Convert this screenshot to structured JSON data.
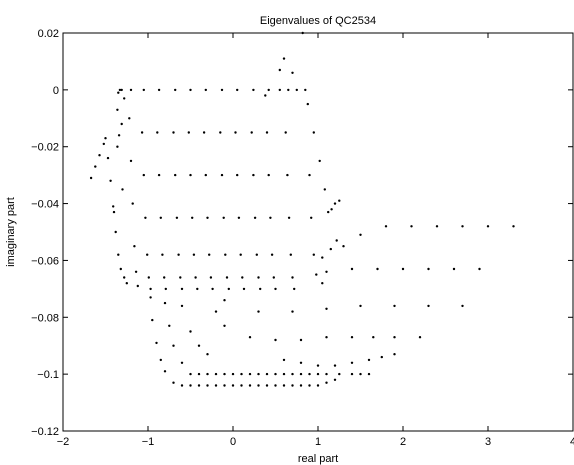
{
  "chart_data": {
    "type": "scatter",
    "title": "Eigenvalues of QC2534",
    "xlabel": "real part",
    "ylabel": "imaginary part",
    "xlim": [
      -2,
      4
    ],
    "ylim": [
      -0.12,
      0.02
    ],
    "xticks": [
      -2,
      -1,
      0,
      1,
      2,
      3,
      4
    ],
    "xtick_labels": [
      "−2",
      "−1",
      "0",
      "1",
      "2",
      "3",
      "4"
    ],
    "yticks": [
      0.02,
      0,
      -0.02,
      -0.04,
      -0.06,
      -0.08,
      -0.1,
      -0.12
    ],
    "ytick_labels": [
      "0.02",
      "0",
      "−0.02",
      "−0.04",
      "−0.06",
      "−0.08",
      "−0.1",
      "−0.12"
    ],
    "grid": false,
    "marker": "dot",
    "color": "#000000",
    "series": [
      {
        "points": [
          [
            -1.67,
            -0.031
          ],
          [
            -1.62,
            -0.027
          ],
          [
            -1.57,
            -0.023
          ],
          [
            -1.52,
            -0.019
          ],
          [
            -1.5,
            -0.017
          ],
          [
            -1.47,
            -0.024
          ],
          [
            -1.44,
            -0.032
          ],
          [
            -1.41,
            -0.041
          ],
          [
            -1.38,
            -0.05
          ],
          [
            -1.35,
            -0.058
          ],
          [
            -1.32,
            -0.063
          ],
          [
            -1.28,
            -0.066
          ],
          [
            -1.25,
            -0.068
          ],
          [
            -1.36,
            -0.007
          ],
          [
            -1.35,
            -0.001
          ],
          [
            -1.33,
            0
          ],
          [
            -1.31,
            0
          ],
          [
            -1.28,
            -0.003
          ],
          [
            -1.31,
            -0.012
          ],
          [
            -1.34,
            -0.016
          ],
          [
            -1.36,
            -0.02
          ],
          [
            -1.2,
            0
          ],
          [
            -1.22,
            -0.01
          ],
          [
            -1.2,
            -0.025
          ],
          [
            -1.18,
            -0.04
          ],
          [
            -1.16,
            -0.055
          ],
          [
            -1.14,
            -0.064
          ],
          [
            -1.12,
            -0.069
          ],
          [
            -1.05,
            0
          ],
          [
            -1.07,
            -0.015
          ],
          [
            -1.05,
            -0.03
          ],
          [
            -1.03,
            -0.045
          ],
          [
            -1.01,
            -0.058
          ],
          [
            -0.99,
            -0.066
          ],
          [
            -0.97,
            -0.07
          ],
          [
            -0.87,
            0
          ],
          [
            -0.89,
            -0.015
          ],
          [
            -0.87,
            -0.03
          ],
          [
            -0.85,
            -0.045
          ],
          [
            -0.83,
            -0.058
          ],
          [
            -0.81,
            -0.066
          ],
          [
            -0.79,
            -0.07
          ],
          [
            -0.68,
            0
          ],
          [
            -0.7,
            -0.015
          ],
          [
            -0.68,
            -0.03
          ],
          [
            -0.66,
            -0.045
          ],
          [
            -0.64,
            -0.058
          ],
          [
            -0.62,
            -0.066
          ],
          [
            -0.6,
            -0.07
          ],
          [
            -0.5,
            0
          ],
          [
            -0.52,
            -0.015
          ],
          [
            -0.5,
            -0.03
          ],
          [
            -0.48,
            -0.045
          ],
          [
            -0.46,
            -0.058
          ],
          [
            -0.44,
            -0.066
          ],
          [
            -0.42,
            -0.07
          ],
          [
            -0.32,
            0
          ],
          [
            -0.34,
            -0.015
          ],
          [
            -0.32,
            -0.03
          ],
          [
            -0.3,
            -0.045
          ],
          [
            -0.28,
            -0.058
          ],
          [
            -0.26,
            -0.066
          ],
          [
            -0.24,
            -0.07
          ],
          [
            -0.13,
            0
          ],
          [
            -0.15,
            -0.015
          ],
          [
            -0.13,
            -0.03
          ],
          [
            -0.11,
            -0.045
          ],
          [
            -0.09,
            -0.058
          ],
          [
            -0.07,
            -0.066
          ],
          [
            -0.05,
            -0.07
          ],
          [
            0.05,
            0
          ],
          [
            0.03,
            -0.015
          ],
          [
            0.05,
            -0.03
          ],
          [
            0.07,
            -0.045
          ],
          [
            0.09,
            -0.058
          ],
          [
            0.11,
            -0.066
          ],
          [
            0.13,
            -0.07
          ],
          [
            0.24,
            0
          ],
          [
            0.22,
            -0.015
          ],
          [
            0.24,
            -0.03
          ],
          [
            0.26,
            -0.045
          ],
          [
            0.28,
            -0.058
          ],
          [
            0.3,
            -0.066
          ],
          [
            0.32,
            -0.07
          ],
          [
            0.42,
            0
          ],
          [
            0.4,
            -0.015
          ],
          [
            0.42,
            -0.03
          ],
          [
            0.44,
            -0.045
          ],
          [
            0.46,
            -0.058
          ],
          [
            0.48,
            -0.066
          ],
          [
            0.5,
            -0.07
          ],
          [
            0.55,
            0
          ],
          [
            0.65,
            0
          ],
          [
            0.75,
            0
          ],
          [
            0.85,
            0
          ],
          [
            0.62,
            -0.015
          ],
          [
            0.64,
            -0.03
          ],
          [
            0.66,
            -0.045
          ],
          [
            0.68,
            -0.058
          ],
          [
            0.7,
            -0.066
          ],
          [
            0.72,
            -0.07
          ],
          [
            0.88,
            -0.005
          ],
          [
            0.95,
            -0.015
          ],
          [
            1.02,
            -0.025
          ],
          [
            1.08,
            -0.035
          ],
          [
            1.12,
            -0.043
          ],
          [
            1.16,
            -0.042
          ],
          [
            1.2,
            -0.04
          ],
          [
            1.25,
            -0.039
          ],
          [
            0.9,
            -0.03
          ],
          [
            0.92,
            -0.045
          ],
          [
            0.95,
            -0.058
          ],
          [
            0.98,
            -0.065
          ],
          [
            1.05,
            -0.068
          ],
          [
            0.82,
            0.02
          ],
          [
            0.55,
            0.007
          ],
          [
            0.6,
            0.011
          ],
          [
            0.7,
            0.006
          ],
          [
            0.38,
            -0.002
          ],
          [
            -1.3,
            -0.035
          ],
          [
            -1.4,
            -0.043
          ],
          [
            -0.97,
            -0.073
          ],
          [
            -0.95,
            -0.081
          ],
          [
            -0.9,
            -0.089
          ],
          [
            -0.85,
            -0.095
          ],
          [
            -0.8,
            -0.099
          ],
          [
            -0.7,
            -0.103
          ],
          [
            -0.6,
            -0.104
          ],
          [
            -0.5,
            -0.104
          ],
          [
            -0.4,
            -0.104
          ],
          [
            -0.3,
            -0.104
          ],
          [
            -0.2,
            -0.104
          ],
          [
            -0.1,
            -0.104
          ],
          [
            0.0,
            -0.104
          ],
          [
            0.1,
            -0.104
          ],
          [
            0.2,
            -0.104
          ],
          [
            0.3,
            -0.104
          ],
          [
            0.4,
            -0.104
          ],
          [
            0.5,
            -0.104
          ],
          [
            0.6,
            -0.104
          ],
          [
            0.7,
            -0.104
          ],
          [
            0.8,
            -0.104
          ],
          [
            0.9,
            -0.104
          ],
          [
            1.0,
            -0.104
          ],
          [
            1.1,
            -0.103
          ],
          [
            1.2,
            -0.102
          ],
          [
            -0.8,
            -0.075
          ],
          [
            -0.75,
            -0.083
          ],
          [
            -0.7,
            -0.09
          ],
          [
            -0.6,
            -0.096
          ],
          [
            -0.5,
            -0.1
          ],
          [
            -0.4,
            -0.1
          ],
          [
            -0.3,
            -0.1
          ],
          [
            -0.2,
            -0.1
          ],
          [
            -0.1,
            -0.1
          ],
          [
            0.0,
            -0.1
          ],
          [
            0.1,
            -0.1
          ],
          [
            0.2,
            -0.1
          ],
          [
            0.3,
            -0.1
          ],
          [
            0.4,
            -0.1
          ],
          [
            0.5,
            -0.1
          ],
          [
            0.6,
            -0.1
          ],
          [
            0.7,
            -0.1
          ],
          [
            0.8,
            -0.1
          ],
          [
            0.9,
            -0.1
          ],
          [
            1.0,
            -0.1
          ],
          [
            1.1,
            -0.1
          ],
          [
            1.25,
            -0.1
          ],
          [
            1.4,
            -0.1
          ],
          [
            1.5,
            -0.1
          ],
          [
            1.6,
            -0.1
          ],
          [
            -0.6,
            -0.076
          ],
          [
            -0.5,
            -0.085
          ],
          [
            -0.4,
            -0.09
          ],
          [
            -0.3,
            -0.093
          ],
          [
            0.6,
            -0.095
          ],
          [
            0.8,
            -0.096
          ],
          [
            1.0,
            -0.097
          ],
          [
            1.2,
            -0.097
          ],
          [
            1.4,
            -0.096
          ],
          [
            1.6,
            -0.095
          ],
          [
            1.75,
            -0.094
          ],
          [
            1.9,
            -0.093
          ],
          [
            -0.2,
            -0.078
          ],
          [
            -0.1,
            -0.083
          ],
          [
            0.2,
            -0.087
          ],
          [
            0.5,
            -0.088
          ],
          [
            0.8,
            -0.088
          ],
          [
            1.1,
            -0.087
          ],
          [
            1.4,
            -0.087
          ],
          [
            1.65,
            -0.087
          ],
          [
            1.9,
            -0.087
          ],
          [
            2.2,
            -0.087
          ],
          [
            -0.1,
            -0.074
          ],
          [
            0.3,
            -0.078
          ],
          [
            0.7,
            -0.078
          ],
          [
            1.1,
            -0.077
          ],
          [
            1.5,
            -0.076
          ],
          [
            1.9,
            -0.076
          ],
          [
            2.3,
            -0.076
          ],
          [
            2.7,
            -0.076
          ],
          [
            1.1,
            -0.064
          ],
          [
            1.4,
            -0.063
          ],
          [
            1.7,
            -0.063
          ],
          [
            2.0,
            -0.063
          ],
          [
            2.3,
            -0.063
          ],
          [
            2.6,
            -0.063
          ],
          [
            2.9,
            -0.063
          ],
          [
            1.3,
            -0.055
          ],
          [
            1.5,
            -0.051
          ],
          [
            1.8,
            -0.048
          ],
          [
            2.1,
            -0.048
          ],
          [
            2.4,
            -0.048
          ],
          [
            2.7,
            -0.048
          ],
          [
            3.0,
            -0.048
          ],
          [
            3.3,
            -0.048
          ],
          [
            1.05,
            -0.059
          ],
          [
            1.15,
            -0.056
          ],
          [
            1.22,
            -0.053
          ]
        ]
      }
    ]
  }
}
